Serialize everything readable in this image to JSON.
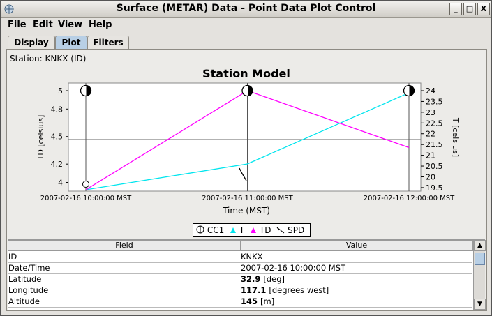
{
  "window": {
    "title": "Surface (METAR) Data - Point Data Plot Control",
    "minimize_label": "_",
    "maximize_label": "□",
    "close_label": "X"
  },
  "menu": [
    "File",
    "Edit",
    "View",
    "Help"
  ],
  "tabs": [
    "Display",
    "Plot",
    "Filters"
  ],
  "active_tab": "Plot",
  "station_label": "Station: KNKX (ID)",
  "chart_data": {
    "type": "line",
    "title": "Station Model",
    "xlabel": "Time (MST)",
    "ylabel_left": "TD [celsius]",
    "ylabel_right": "T [celsius]",
    "x": [
      "2007-02-16 10:00:00 MST",
      "2007-02-16 11:00:00 MST",
      "2007-02-16 12:00:00 MST"
    ],
    "y_left_ticks": [
      "5",
      "4.8",
      "4.5",
      "4.2",
      "4"
    ],
    "y_right_ticks": [
      "24",
      "23.5",
      "23",
      "22.5",
      "22",
      "21.5",
      "21",
      "20.5",
      "20",
      "19.5"
    ],
    "series": [
      {
        "name": "T",
        "axis": "right",
        "color": "#00e5ee",
        "values": [
          19.4,
          20.6,
          23.9
        ]
      },
      {
        "name": "TD",
        "axis": "left",
        "color": "#ff00ff",
        "values": [
          3.92,
          5.0,
          4.38
        ]
      }
    ],
    "legend": [
      "CC1",
      "T",
      "TD",
      "SPD"
    ],
    "legend_placement": "bottom",
    "cc1_markers": [
      "full-left-half",
      "full-left-half",
      "full-left-half"
    ],
    "grid": false
  },
  "table": {
    "headers": [
      "Field",
      "Value"
    ],
    "rows": [
      {
        "field": "ID",
        "value": "KNKX",
        "bold": "",
        "unit": ""
      },
      {
        "field": "Date/Time",
        "value": "2007-02-16 10:00:00 MST",
        "bold": "",
        "unit": ""
      },
      {
        "field": "Latitude",
        "value": "",
        "bold": "32.9",
        "unit": "[deg]"
      },
      {
        "field": "Longitude",
        "value": "",
        "bold": "117.1",
        "unit": "[degrees west]"
      },
      {
        "field": "Altitude",
        "value": "",
        "bold": "145",
        "unit": "[m]"
      }
    ]
  }
}
